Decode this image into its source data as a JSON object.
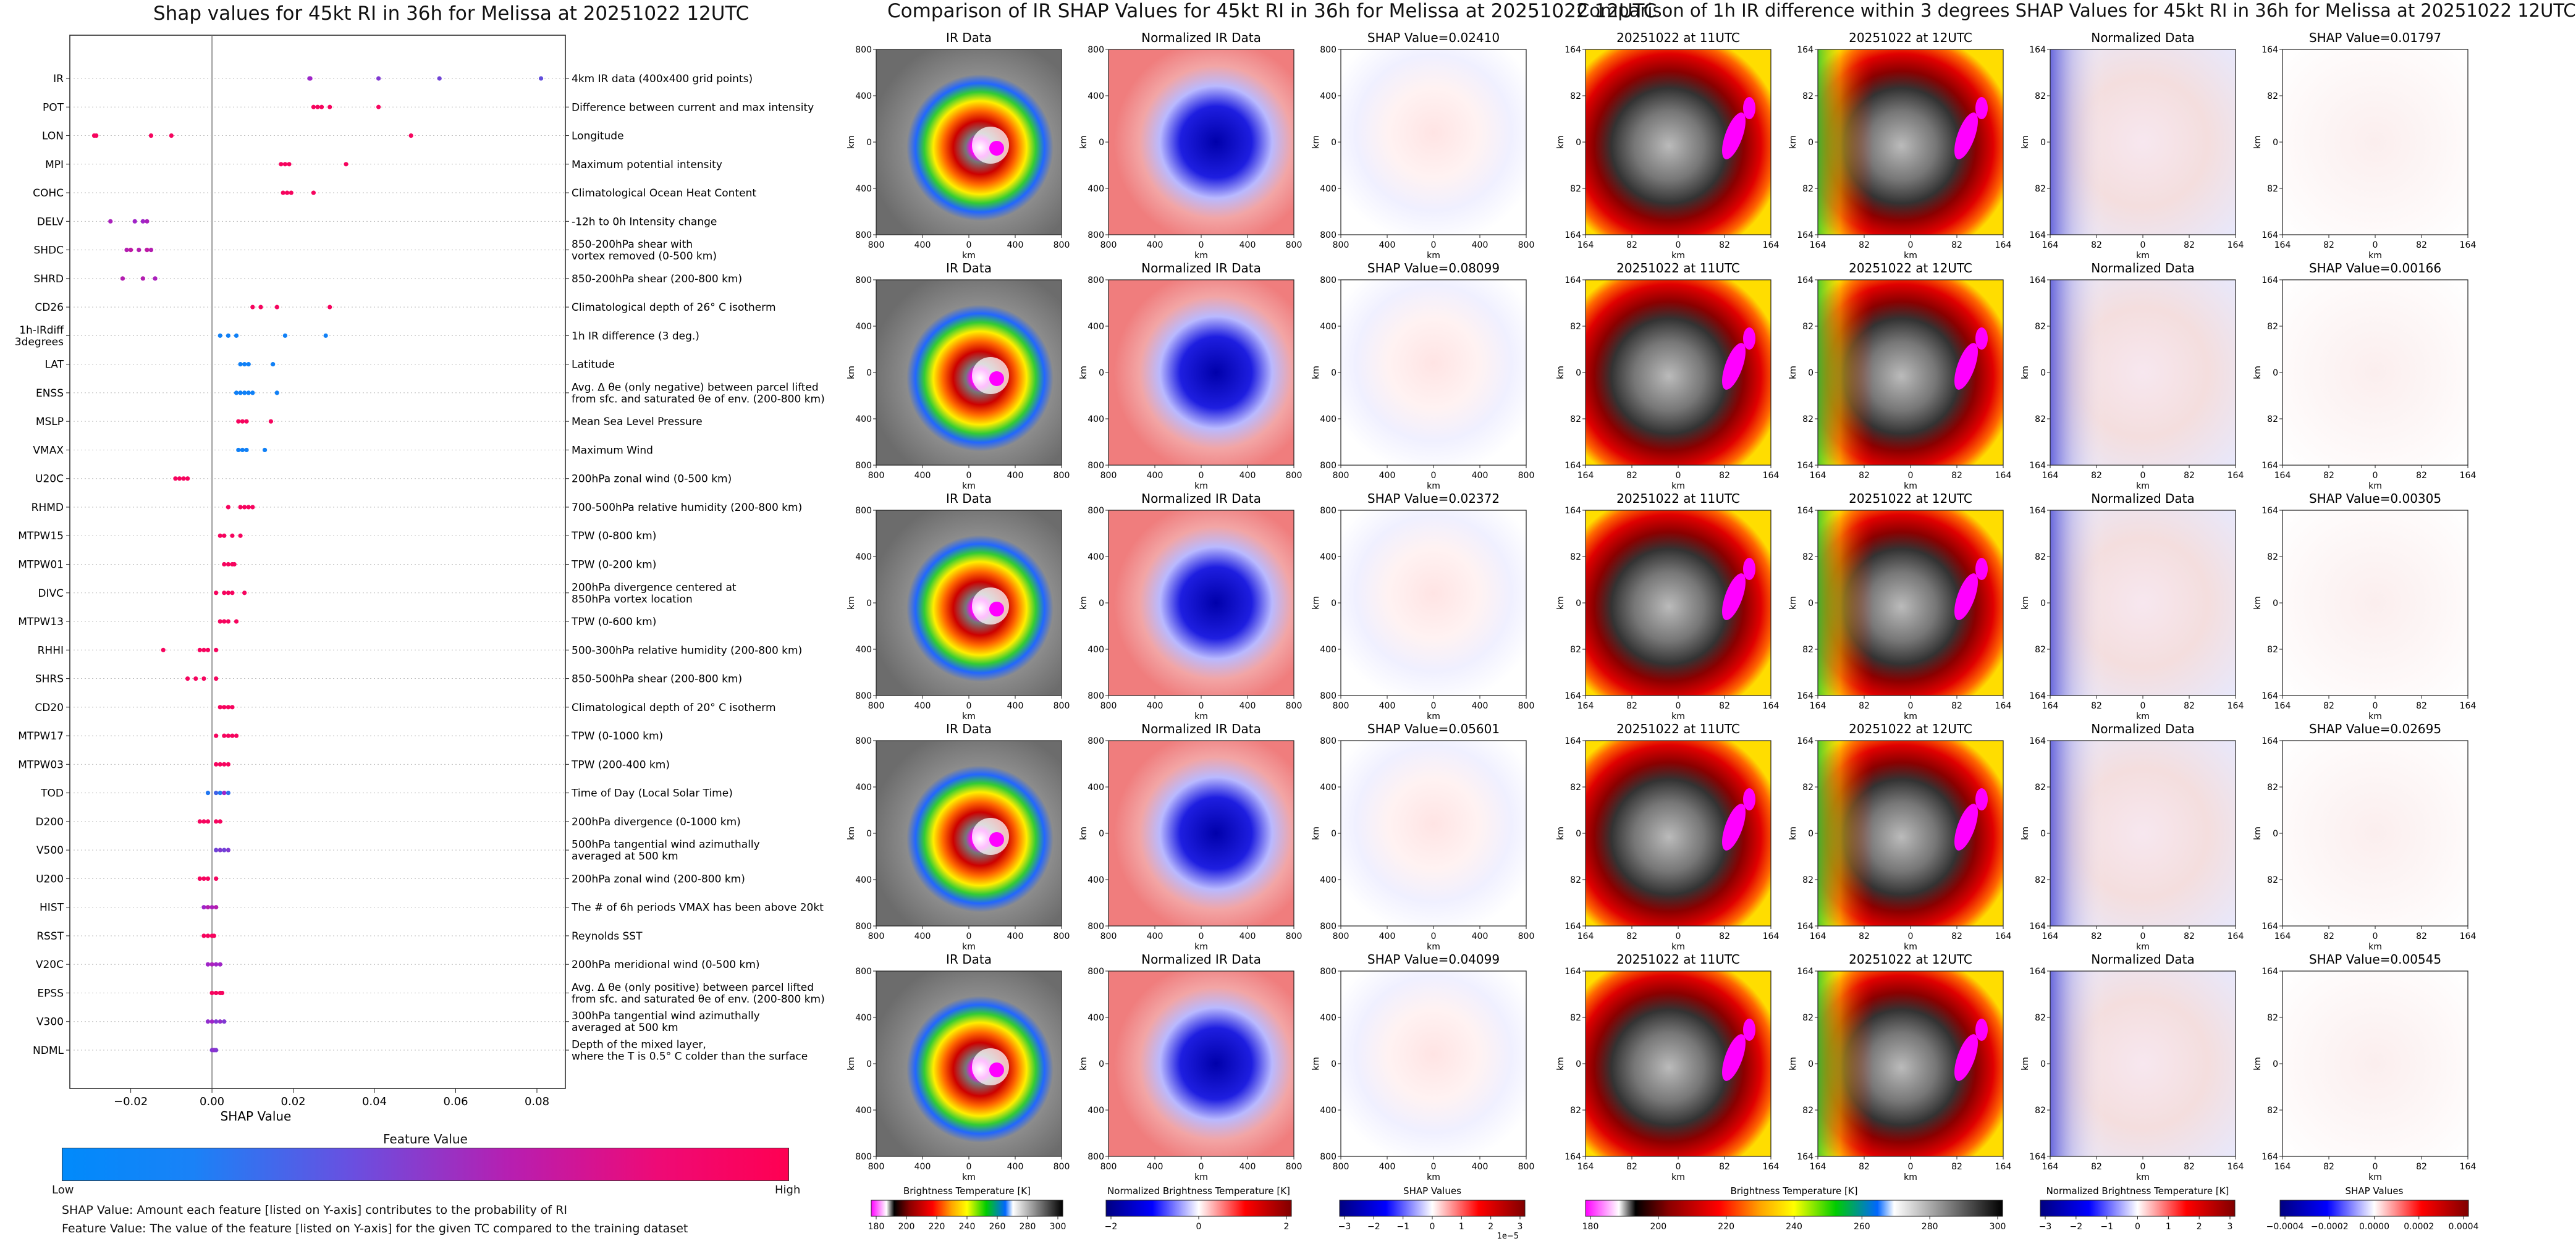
{
  "left": {
    "title": "Shap values for 45kt RI in 36h for Melissa at 20251022 12UTC",
    "xlabel": "SHAP Value",
    "legend_title": "Feature Value",
    "legend_low": "Low",
    "legend_high": "High",
    "note1": "SHAP Value: Amount each feature [listed on Y-axis] contributes to the probability of RI",
    "note2": "Feature Value: The value of the feature [listed on Y-axis] for the given TC compared to the training dataset"
  },
  "middle": {
    "title": "Comparison of IR SHAP Values for 45kt RI in 36h for Melissa at 20251022 12UTC",
    "col_titles": [
      "IR Data",
      "Normalized IR Data"
    ],
    "shap_titles": [
      "SHAP Value=0.02410",
      "SHAP Value=0.08099",
      "SHAP Value=0.02372",
      "SHAP Value=0.05601",
      "SHAP Value=0.04099"
    ],
    "axis_label": "km",
    "ticks": [
      "800",
      "400",
      "0",
      "400",
      "800"
    ],
    "cb_labels": [
      "Brightness Temperature [K]",
      "Normalized Brightness Temperature [K]",
      "SHAP Values"
    ],
    "cb_ticks_bt": [
      "180",
      "200",
      "220",
      "240",
      "260",
      "280",
      "300"
    ],
    "cb_ticks_norm": [
      "−2",
      "0",
      "2"
    ],
    "cb_ticks_shap": [
      "−3",
      "−2",
      "−1",
      "0",
      "1",
      "2",
      "3"
    ],
    "cb_exp": "1e−5"
  },
  "right": {
    "title": "Comparison of 1h IR difference within 3 degrees SHAP Values for 45kt RI in 36h for Melissa at 20251022 12UTC",
    "col_titles": [
      "20251022 at 11UTC",
      "20251022 at 12UTC",
      "Normalized Data"
    ],
    "shap_titles": [
      "SHAP Value=0.01797",
      "SHAP Value=0.00166",
      "SHAP Value=0.00305",
      "SHAP Value=0.02695",
      "SHAP Value=0.00545"
    ],
    "axis_label": "km",
    "ticks": [
      "164",
      "82",
      "0",
      "82",
      "164"
    ],
    "cb_labels": [
      "Brightness Temperature [K]",
      "Normalized Brightness Temperature [K]",
      "SHAP Values"
    ],
    "cb_ticks_bt": [
      "180",
      "200",
      "220",
      "240",
      "260",
      "280",
      "300"
    ],
    "cb_ticks_norm": [
      "−3",
      "−2",
      "−1",
      "0",
      "1",
      "2",
      "3"
    ],
    "cb_ticks_shap": [
      "−0.0004",
      "−0.0002",
      "0.0000",
      "0.0002",
      "0.0004"
    ]
  },
  "chart_data": [
    {
      "type": "scatter",
      "title": "Shap values for 45kt RI in 36h for Melissa at 20251022 12UTC",
      "xlabel": "SHAP Value",
      "xlim": [
        -0.035,
        0.087
      ],
      "xticks": [
        "−0.02",
        "0.00",
        "0.02",
        "0.04",
        "0.06",
        "0.08"
      ],
      "xtick_values": [
        -0.02,
        0.0,
        0.02,
        0.04,
        0.06,
        0.08
      ],
      "colors": {
        "low": "#008afb",
        "mid": "#a024c8",
        "high": "#ff0052"
      },
      "features": [
        {
          "label": "IR",
          "desc": "4km IR data (400x400 grid points)",
          "points": [
            [
              0.024,
              0.45
            ],
            [
              0.0242,
              0.5
            ],
            [
              0.041,
              0.4
            ],
            [
              0.056,
              0.35
            ],
            [
              0.081,
              0.3
            ]
          ]
        },
        {
          "label": "POT",
          "desc": "Difference between current and max intensity",
          "points": [
            [
              0.025,
              0.95
            ],
            [
              0.026,
              0.95
            ],
            [
              0.027,
              0.95
            ],
            [
              0.029,
              0.95
            ],
            [
              0.041,
              0.95
            ]
          ]
        },
        {
          "label": "LON",
          "desc": "Longitude",
          "points": [
            [
              -0.029,
              0.95
            ],
            [
              -0.0285,
              0.95
            ],
            [
              -0.015,
              0.95
            ],
            [
              -0.01,
              0.95
            ],
            [
              0.049,
              0.95
            ]
          ]
        },
        {
          "label": "MPI",
          "desc": "Maximum potential intensity",
          "points": [
            [
              0.017,
              0.95
            ],
            [
              0.018,
              0.95
            ],
            [
              0.019,
              0.95
            ],
            [
              0.033,
              0.95
            ]
          ]
        },
        {
          "label": "COHC",
          "desc": "Climatological Ocean Heat Content",
          "points": [
            [
              0.0175,
              0.95
            ],
            [
              0.0185,
              0.95
            ],
            [
              0.0195,
              0.95
            ],
            [
              0.025,
              0.95
            ]
          ]
        },
        {
          "label": "DELV",
          "desc": "-12h to 0h Intensity change",
          "points": [
            [
              -0.025,
              0.55
            ],
            [
              -0.019,
              0.5
            ],
            [
              -0.017,
              0.5
            ],
            [
              -0.016,
              0.55
            ]
          ]
        },
        {
          "label": "SHDC",
          "desc": "850-200hPa shear with|vortex removed (0-500 km)",
          "points": [
            [
              -0.021,
              0.6
            ],
            [
              -0.02,
              0.65
            ],
            [
              -0.018,
              0.6
            ],
            [
              -0.016,
              0.65
            ],
            [
              -0.015,
              0.6
            ]
          ]
        },
        {
          "label": "SHRD",
          "desc": "850-200hPa shear (200-800 km)",
          "points": [
            [
              -0.022,
              0.6
            ],
            [
              -0.017,
              0.6
            ],
            [
              -0.014,
              0.55
            ]
          ]
        },
        {
          "label": "CD26",
          "desc": "Climatological depth of 26° C isotherm",
          "points": [
            [
              0.01,
              0.95
            ],
            [
              0.012,
              0.95
            ],
            [
              0.016,
              0.95
            ],
            [
              0.029,
              0.95
            ]
          ]
        },
        {
          "label": "1h-IRdiff|3degrees",
          "desc": "1h IR difference (3 deg.)",
          "points": [
            [
              0.002,
              0.05
            ],
            [
              0.004,
              0.05
            ],
            [
              0.006,
              0.05
            ],
            [
              0.018,
              0.05
            ],
            [
              0.028,
              0.05
            ]
          ]
        },
        {
          "label": "LAT",
          "desc": "Latitude",
          "points": [
            [
              0.007,
              0.05
            ],
            [
              0.008,
              0.05
            ],
            [
              0.009,
              0.05
            ],
            [
              0.015,
              0.05
            ]
          ]
        },
        {
          "label": "ENSS",
          "desc": "Avg. Δ θe (only negative) between parcel lifted|from sfc. and saturated θe of env. (200-800 km)",
          "points": [
            [
              0.006,
              0.05
            ],
            [
              0.007,
              0.05
            ],
            [
              0.008,
              0.05
            ],
            [
              0.009,
              0.05
            ],
            [
              0.01,
              0.05
            ],
            [
              0.016,
              0.05
            ]
          ]
        },
        {
          "label": "MSLP",
          "desc": "Mean Sea Level Pressure",
          "points": [
            [
              0.0065,
              0.95
            ],
            [
              0.0075,
              0.95
            ],
            [
              0.0085,
              0.95
            ],
            [
              0.0145,
              0.95
            ]
          ]
        },
        {
          "label": "VMAX",
          "desc": "Maximum Wind",
          "points": [
            [
              0.0065,
              0.05
            ],
            [
              0.0075,
              0.05
            ],
            [
              0.0085,
              0.05
            ],
            [
              0.013,
              0.05
            ]
          ]
        },
        {
          "label": "U20C",
          "desc": "200hPa zonal wind (0-500 km)",
          "points": [
            [
              -0.009,
              0.95
            ],
            [
              -0.008,
              0.95
            ],
            [
              -0.007,
              0.95
            ],
            [
              -0.006,
              0.95
            ]
          ]
        },
        {
          "label": "RHMD",
          "desc": "700-500hPa relative humidity (200-800 km)",
          "points": [
            [
              0.004,
              0.95
            ],
            [
              0.007,
              0.95
            ],
            [
              0.008,
              0.95
            ],
            [
              0.009,
              0.95
            ],
            [
              0.01,
              0.95
            ]
          ]
        },
        {
          "label": "MTPW15",
          "desc": "TPW (0-800 km)",
          "points": [
            [
              0.002,
              0.95
            ],
            [
              0.003,
              0.95
            ],
            [
              0.005,
              0.95
            ],
            [
              0.007,
              0.95
            ]
          ]
        },
        {
          "label": "MTPW01",
          "desc": "TPW (0-200 km)",
          "points": [
            [
              0.003,
              0.95
            ],
            [
              0.004,
              0.95
            ],
            [
              0.005,
              0.95
            ],
            [
              0.0055,
              0.95
            ]
          ]
        },
        {
          "label": "DIVC",
          "desc": "200hPa divergence centered at|850hPa vortex location",
          "points": [
            [
              0.001,
              0.95
            ],
            [
              0.003,
              0.95
            ],
            [
              0.004,
              0.95
            ],
            [
              0.005,
              0.95
            ],
            [
              0.008,
              0.95
            ]
          ]
        },
        {
          "label": "MTPW13",
          "desc": "TPW (0-600 km)",
          "points": [
            [
              0.002,
              0.95
            ],
            [
              0.003,
              0.95
            ],
            [
              0.004,
              0.95
            ],
            [
              0.006,
              0.95
            ]
          ]
        },
        {
          "label": "RHHI",
          "desc": "500-300hPa relative humidity (200-800 km)",
          "points": [
            [
              -0.012,
              0.95
            ],
            [
              -0.003,
              0.95
            ],
            [
              -0.002,
              0.95
            ],
            [
              -0.001,
              0.95
            ],
            [
              0.001,
              0.95
            ]
          ]
        },
        {
          "label": "SHRS",
          "desc": "850-500hPa shear (200-800 km)",
          "points": [
            [
              -0.006,
              0.95
            ],
            [
              -0.004,
              0.95
            ],
            [
              -0.002,
              0.95
            ],
            [
              0.001,
              0.95
            ]
          ]
        },
        {
          "label": "CD20",
          "desc": "Climatological depth of 20° C isotherm",
          "points": [
            [
              0.002,
              0.95
            ],
            [
              0.003,
              0.95
            ],
            [
              0.004,
              0.95
            ],
            [
              0.005,
              0.95
            ]
          ]
        },
        {
          "label": "MTPW17",
          "desc": "TPW (0-1000 km)",
          "points": [
            [
              0.001,
              0.95
            ],
            [
              0.003,
              0.95
            ],
            [
              0.004,
              0.95
            ],
            [
              0.005,
              0.95
            ],
            [
              0.006,
              0.95
            ]
          ]
        },
        {
          "label": "MTPW03",
          "desc": "TPW (200-400 km)",
          "points": [
            [
              0.001,
              0.95
            ],
            [
              0.002,
              0.95
            ],
            [
              0.003,
              0.95
            ],
            [
              0.004,
              0.95
            ]
          ]
        },
        {
          "label": "TOD",
          "desc": "Time of Day (Local Solar Time)",
          "points": [
            [
              -0.001,
              0.1
            ],
            [
              0.001,
              0.2
            ],
            [
              0.002,
              0.1
            ],
            [
              0.003,
              0.5
            ],
            [
              0.004,
              0.15
            ]
          ]
        },
        {
          "label": "D200",
          "desc": "200hPa divergence (0-1000 km)",
          "points": [
            [
              -0.003,
              0.95
            ],
            [
              -0.002,
              0.95
            ],
            [
              -0.001,
              0.95
            ],
            [
              0.001,
              0.95
            ],
            [
              0.002,
              0.95
            ]
          ]
        },
        {
          "label": "V500",
          "desc": "500hPa tangential wind azimuthally|averaged at 500 km",
          "points": [
            [
              0.001,
              0.35
            ],
            [
              0.002,
              0.4
            ],
            [
              0.003,
              0.35
            ],
            [
              0.004,
              0.4
            ]
          ]
        },
        {
          "label": "U200",
          "desc": "200hPa zonal wind (200-800 km)",
          "points": [
            [
              -0.003,
              0.95
            ],
            [
              -0.002,
              0.95
            ],
            [
              -0.001,
              0.95
            ],
            [
              0.001,
              0.95
            ]
          ]
        },
        {
          "label": "HIST",
          "desc": "The # of 6h periods VMAX has been above 20kt",
          "points": [
            [
              -0.002,
              0.5
            ],
            [
              -0.001,
              0.6
            ],
            [
              0.0,
              0.55
            ],
            [
              0.001,
              0.6
            ]
          ]
        },
        {
          "label": "RSST",
          "desc": "Reynolds SST",
          "points": [
            [
              -0.002,
              0.95
            ],
            [
              -0.001,
              0.95
            ],
            [
              0.0,
              0.95
            ],
            [
              0.0005,
              0.95
            ]
          ]
        },
        {
          "label": "V20C",
          "desc": "200hPa meridional wind (0-500 km)",
          "points": [
            [
              -0.001,
              0.5
            ],
            [
              0.0,
              0.55
            ],
            [
              0.001,
              0.5
            ],
            [
              0.002,
              0.5
            ]
          ]
        },
        {
          "label": "EPSS",
          "desc": "Avg. Δ θe (only positive) between parcel lifted|from sfc. and saturated θe of env. (200-800 km)",
          "points": [
            [
              0.0,
              0.95
            ],
            [
              0.001,
              0.95
            ],
            [
              0.002,
              0.95
            ],
            [
              0.0025,
              0.95
            ]
          ]
        },
        {
          "label": "V300",
          "desc": "300hPa tangential wind azimuthally|averaged at 500 km",
          "points": [
            [
              -0.001,
              0.45
            ],
            [
              0.0,
              0.5
            ],
            [
              0.001,
              0.4
            ],
            [
              0.002,
              0.45
            ],
            [
              0.003,
              0.4
            ]
          ]
        },
        {
          "label": "NDML",
          "desc": "Depth of the mixed layer,|where the T is 0.5° C colder than the surface",
          "points": [
            [
              0.0,
              0.4
            ],
            [
              0.0005,
              0.45
            ],
            [
              0.001,
              0.4
            ]
          ]
        }
      ]
    }
  ]
}
